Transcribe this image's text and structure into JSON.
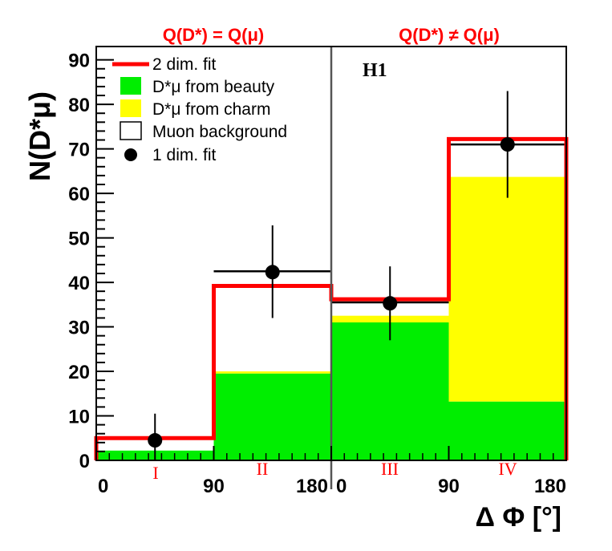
{
  "chart_data": {
    "type": "bar",
    "ylabel": "N(D*μ)",
    "xlabel": "Δ Φ [°]",
    "ylim": [
      0,
      93
    ],
    "yticks": [
      0,
      10,
      20,
      30,
      40,
      50,
      60,
      70,
      80,
      90
    ],
    "xtick_labels": [
      "0",
      "90",
      "180",
      "0",
      "90",
      "180"
    ],
    "region_labels": [
      "Q(D*) = Q(μ)",
      "Q(D*) ≠ Q(μ)"
    ],
    "bin_labels": [
      "I",
      "II",
      "III",
      "IV"
    ],
    "experiment_label": "H1",
    "bins": [
      {
        "label": "I",
        "beauty": 2.2,
        "charm": 0.0,
        "background": 3.0,
        "fit_2d": 5.0
      },
      {
        "label": "II",
        "beauty": 19.5,
        "charm": 0.5,
        "background": 19.0,
        "fit_2d": 39.2
      },
      {
        "label": "III",
        "beauty": 31.0,
        "charm": 1.5,
        "background": 3.7,
        "fit_2d": 36.2
      },
      {
        "label": "IV",
        "beauty": 13.2,
        "charm": 50.5,
        "background": 8.5,
        "fit_2d": 72.2
      }
    ],
    "fit_1d_step": [
      5.0,
      42.5,
      35.5,
      71.0
    ],
    "points_1d": [
      {
        "bin": "I",
        "y": 4.5,
        "err_low": 4.5,
        "err_high": 6.0
      },
      {
        "bin": "II",
        "y": 42.3,
        "err_low": 10.3,
        "err_high": 10.5
      },
      {
        "bin": "III",
        "y": 35.3,
        "err_low": 8.3,
        "err_high": 8.3
      },
      {
        "bin": "IV",
        "y": 71.0,
        "err_low": 12.0,
        "err_high": 12.0
      }
    ],
    "legend": [
      {
        "label": "2 dim. fit",
        "style": "line",
        "color": "#ff0000"
      },
      {
        "label": "D*μ from beauty",
        "style": "box",
        "color": "#00ee00"
      },
      {
        "label": "D*μ from charm",
        "style": "box",
        "color": "#ffff00"
      },
      {
        "label": "Muon background",
        "style": "box",
        "color": "#ffffff"
      },
      {
        "label": "1 dim. fit",
        "style": "marker",
        "color": "#000000"
      }
    ],
    "colors": {
      "beauty": "#00ee00",
      "charm": "#ffff00",
      "background": "#ffffff",
      "fit_2d": "#ff0000",
      "fit_1d": "#000000",
      "labels": "#ff0000"
    }
  }
}
